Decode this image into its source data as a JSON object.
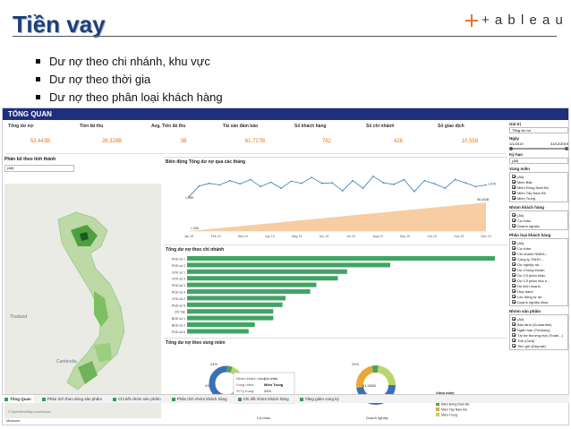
{
  "slide": {
    "title": "Tiền vay",
    "logo_text": "+ a b l e a u",
    "bullets": [
      "Dư nợ theo chi nhánh, khu vực",
      "Dư nợ theo thời gia",
      "Dư nợ theo phân loại khách hàng"
    ]
  },
  "dashboard": {
    "header": "TỔNG QUAN",
    "kpis": [
      {
        "label": "Tổng dư nợ",
        "value": "53,443B"
      },
      {
        "label": "Tiền lãi thu",
        "value": "28,328B"
      },
      {
        "label": "Avg. Tiền lãi thu",
        "value": "3B"
      },
      {
        "label": "Tài sản đảm bảo",
        "value": "61,727B"
      },
      {
        "label": "Số khách hàng",
        "value": "762"
      },
      {
        "label": "Số chi nhánh",
        "value": "426"
      },
      {
        "label": "Số giao dịch",
        "value": "10,559"
      }
    ],
    "map": {
      "title": "Phân bổ theo tỉnh thành",
      "select": "(All)",
      "labels": [
        "Thailand",
        "Cambodia"
      ],
      "legend_label": "Measure",
      "attribution": "© OpenStreetMap contributors"
    },
    "line_chart": {
      "title": "Biến động Tổng dư nợ qua các tháng"
    },
    "bar_chart": {
      "title": "Tổng dư nợ theo chi nhánh"
    },
    "donut_chart": {
      "title": "Tổng dư nợ theo vùng miền",
      "tooltip": {
        "rows": [
          {
            "k": "Nhóm khách hàng:",
            "v": "Cá nhân"
          },
          {
            "k": "Vùng miền:",
            "v": "Miền Trung"
          },
          {
            "k": "% Tỷ trọng:",
            "v": "24%"
          },
          {
            "k": "Tổng dư nợ:",
            "v": "5,009B"
          }
        ]
      },
      "donut_labels": [
        "Cá nhân",
        "Doanh nghiệp"
      ],
      "left_pcts": [
        "24%",
        "4%",
        "52%"
      ],
      "right_center": "31,353B",
      "right_pcts": [
        "24%",
        "48%"
      ],
      "legend_title": "Vùng miền",
      "legend": [
        {
          "name": "Miền Bắc",
          "color": "#3b6fb6"
        },
        {
          "name": "Miền Đông Nam Bộ",
          "color": "#4aa35a"
        },
        {
          "name": "Miền Tây Nam Bộ",
          "color": "#e8a83a"
        },
        {
          "name": "Miền Trung",
          "color": "#b9d66a"
        }
      ]
    },
    "filters": {
      "gia_tri": {
        "label": "Giá trị",
        "value": "Tổng dư nợ"
      },
      "ngay": {
        "label": "Ngày",
        "from": "1/1/2019",
        "to": "31/12/2019"
      },
      "ky_han": {
        "label": "Kỳ hạn",
        "value": "(All)"
      },
      "vung_mien": {
        "label": "Vùng miền",
        "options": [
          "(All)",
          "Miền Bắc",
          "Miền Đông Nam Bộ",
          "Miền Tây Nam Bộ",
          "Miền Trung"
        ]
      },
      "nhom_kh": {
        "label": "Nhóm khách hàng",
        "options": [
          "(All)",
          "Cá nhân",
          "Doanh nghiệp"
        ]
      },
      "phan_loai_kh": {
        "label": "Phân loại khách hàng",
        "options": [
          "(All)",
          "Cá nhân",
          "Chi nhánh NNĐA...",
          "Công ty TNHH ...",
          "Dự nghiệp nh...",
          "Dự Chúng khoán",
          "Dự Cổ phần khác",
          "Dự Cổ phần nhà n...",
          "Hộ kinh doanh",
          "Hợp danh",
          "Lao động tự do",
          "Doanh nghiệp khác"
        ]
      },
      "nhom_sp": {
        "label": "Nhóm sản phẩm",
        "options": [
          "(All)",
          "Bảo lãnh (Guarantee)",
          "Ngắn hạn (Treasury)",
          "Tài trợ thương mại (Trade...)",
          "Thẻ (Card)",
          "Tiền gửi (Deposit)"
        ]
      }
    },
    "tabs": [
      "Tổng Quan",
      "Phân tích theo dòng sản phẩm",
      "Chi tiết nhóm sản phẩm",
      "Phân tích nhóm khách hàng",
      "Chi tiết nhóm khách hàng",
      "Tăng giảm cùng kỳ"
    ]
  },
  "chart_data": [
    {
      "type": "line",
      "title": "Biến động Tổng dư nợ qua các tháng",
      "x_ticks": [
        "Jan 19",
        "Feb 19",
        "Mar 19",
        "Apr 19",
        "May 19",
        "Jun 19",
        "Jul 19",
        "Aug 19",
        "Sep 19",
        "Oct 19",
        "Nov 19",
        "Dec 19"
      ],
      "series": [
        {
          "values": [
            54,
            74,
            79,
            76,
            84,
            78,
            86,
            73,
            81,
            70,
            83,
            79,
            90,
            79,
            80,
            65,
            84,
            70,
            92,
            80,
            77,
            86,
            64,
            84,
            78,
            70,
            86,
            80,
            73,
            76
          ]
        },
        {
          "values": [
            0,
            2,
            4,
            6,
            8,
            10,
            12,
            14,
            16,
            18,
            20,
            22,
            24,
            26,
            28,
            30,
            32,
            34,
            36,
            38,
            40,
            42,
            44,
            46,
            48,
            50,
            52,
            54,
            56,
            58
          ]
        }
      ],
      "data_labels": [
        "1,098",
        "1,078",
        "1,006",
        "55,443B"
      ]
    },
    {
      "type": "bar",
      "title": "Tổng dư nợ theo chi nhánh",
      "categories": [
        "PGD số 1",
        "PGD số 2",
        "GTK số 1",
        "GTK số 3",
        "PGD số 3",
        "PGD số 4",
        "GTK số 2",
        "PGD số 5",
        "CN Tân",
        "BGD số 1",
        "BGD số 2",
        "PGD số 6"
      ],
      "values": [
        100,
        66,
        52,
        49,
        42,
        40,
        32,
        31,
        28,
        28,
        22,
        20
      ],
      "data_labels": [
        "",
        "",
        "",
        "",
        "",
        "",
        "",
        "",
        "",
        "",
        "",
        ""
      ]
    }
  ]
}
